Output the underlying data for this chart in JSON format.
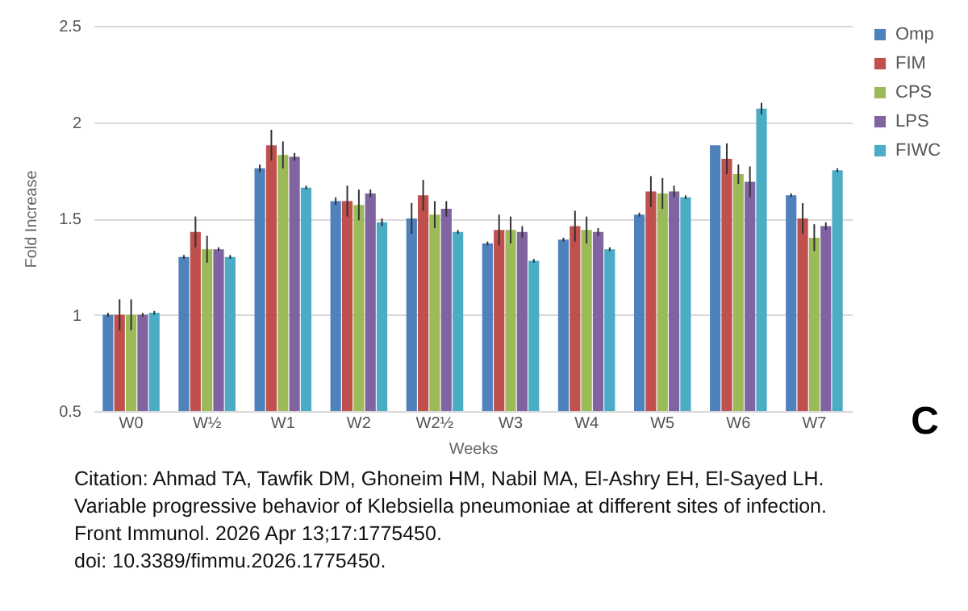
{
  "chart_data": {
    "type": "bar",
    "xlabel": "Weeks",
    "ylabel": "Fold Increase",
    "categories": [
      "W0",
      "W½",
      "W1",
      "W2",
      "W2½",
      "W3",
      "W4",
      "W5",
      "W6",
      "W7"
    ],
    "series": [
      {
        "name": "Omp",
        "color": "#4f81bd",
        "values": [
          1.0,
          1.3,
          1.76,
          1.59,
          1.5,
          1.37,
          1.39,
          1.52,
          1.88,
          1.62
        ],
        "errors": [
          0.01,
          0.01,
          0.02,
          0.02,
          0.08,
          0.01,
          0.01,
          0.01,
          null,
          0.01
        ]
      },
      {
        "name": "FIM",
        "color": "#c0504d",
        "values": [
          1.0,
          1.43,
          1.88,
          1.59,
          1.62,
          1.44,
          1.46,
          1.64,
          1.81,
          1.5
        ],
        "errors": [
          0.08,
          0.08,
          0.08,
          0.08,
          0.08,
          0.08,
          0.08,
          0.08,
          0.08,
          0.08
        ]
      },
      {
        "name": "CPS",
        "color": "#9bbb59",
        "values": [
          1.0,
          1.34,
          1.83,
          1.57,
          1.52,
          1.44,
          1.44,
          1.63,
          1.73,
          1.4
        ],
        "errors": [
          0.08,
          0.07,
          0.07,
          0.08,
          0.07,
          0.07,
          0.07,
          0.08,
          0.05,
          0.07
        ]
      },
      {
        "name": "LPS",
        "color": "#8064a2",
        "values": [
          1.0,
          1.34,
          1.82,
          1.63,
          1.55,
          1.43,
          1.43,
          1.64,
          1.69,
          1.46
        ],
        "errors": [
          0.01,
          0.01,
          0.02,
          0.02,
          0.04,
          0.03,
          0.02,
          0.03,
          0.08,
          0.02
        ]
      },
      {
        "name": "FIWC",
        "color": "#4bacc6",
        "values": [
          1.01,
          1.3,
          1.66,
          1.48,
          1.43,
          1.28,
          1.34,
          1.61,
          2.07,
          1.75
        ],
        "errors": [
          0.01,
          0.01,
          0.01,
          0.02,
          0.01,
          0.01,
          0.01,
          0.01,
          0.03,
          0.01
        ]
      }
    ],
    "ylim": [
      0.5,
      2.5
    ],
    "yticks": [
      0.5,
      1,
      1.5,
      2,
      2.5
    ],
    "grid": "y",
    "legend": "right",
    "annotations": [
      "C",
      "Citation: Ahmad TA, Tawfik DM, Ghoneim HM, Nabil MA, El-Ashry EH, El-Sayed LH.",
      "Variable progressive behavior of Klebsiella pneumoniae at different sites of infection.",
      "Front Immunol. 2026 Apr 13;17:1775450.",
      "doi: 10.3389/fimmu.2026.1775450."
    ]
  }
}
